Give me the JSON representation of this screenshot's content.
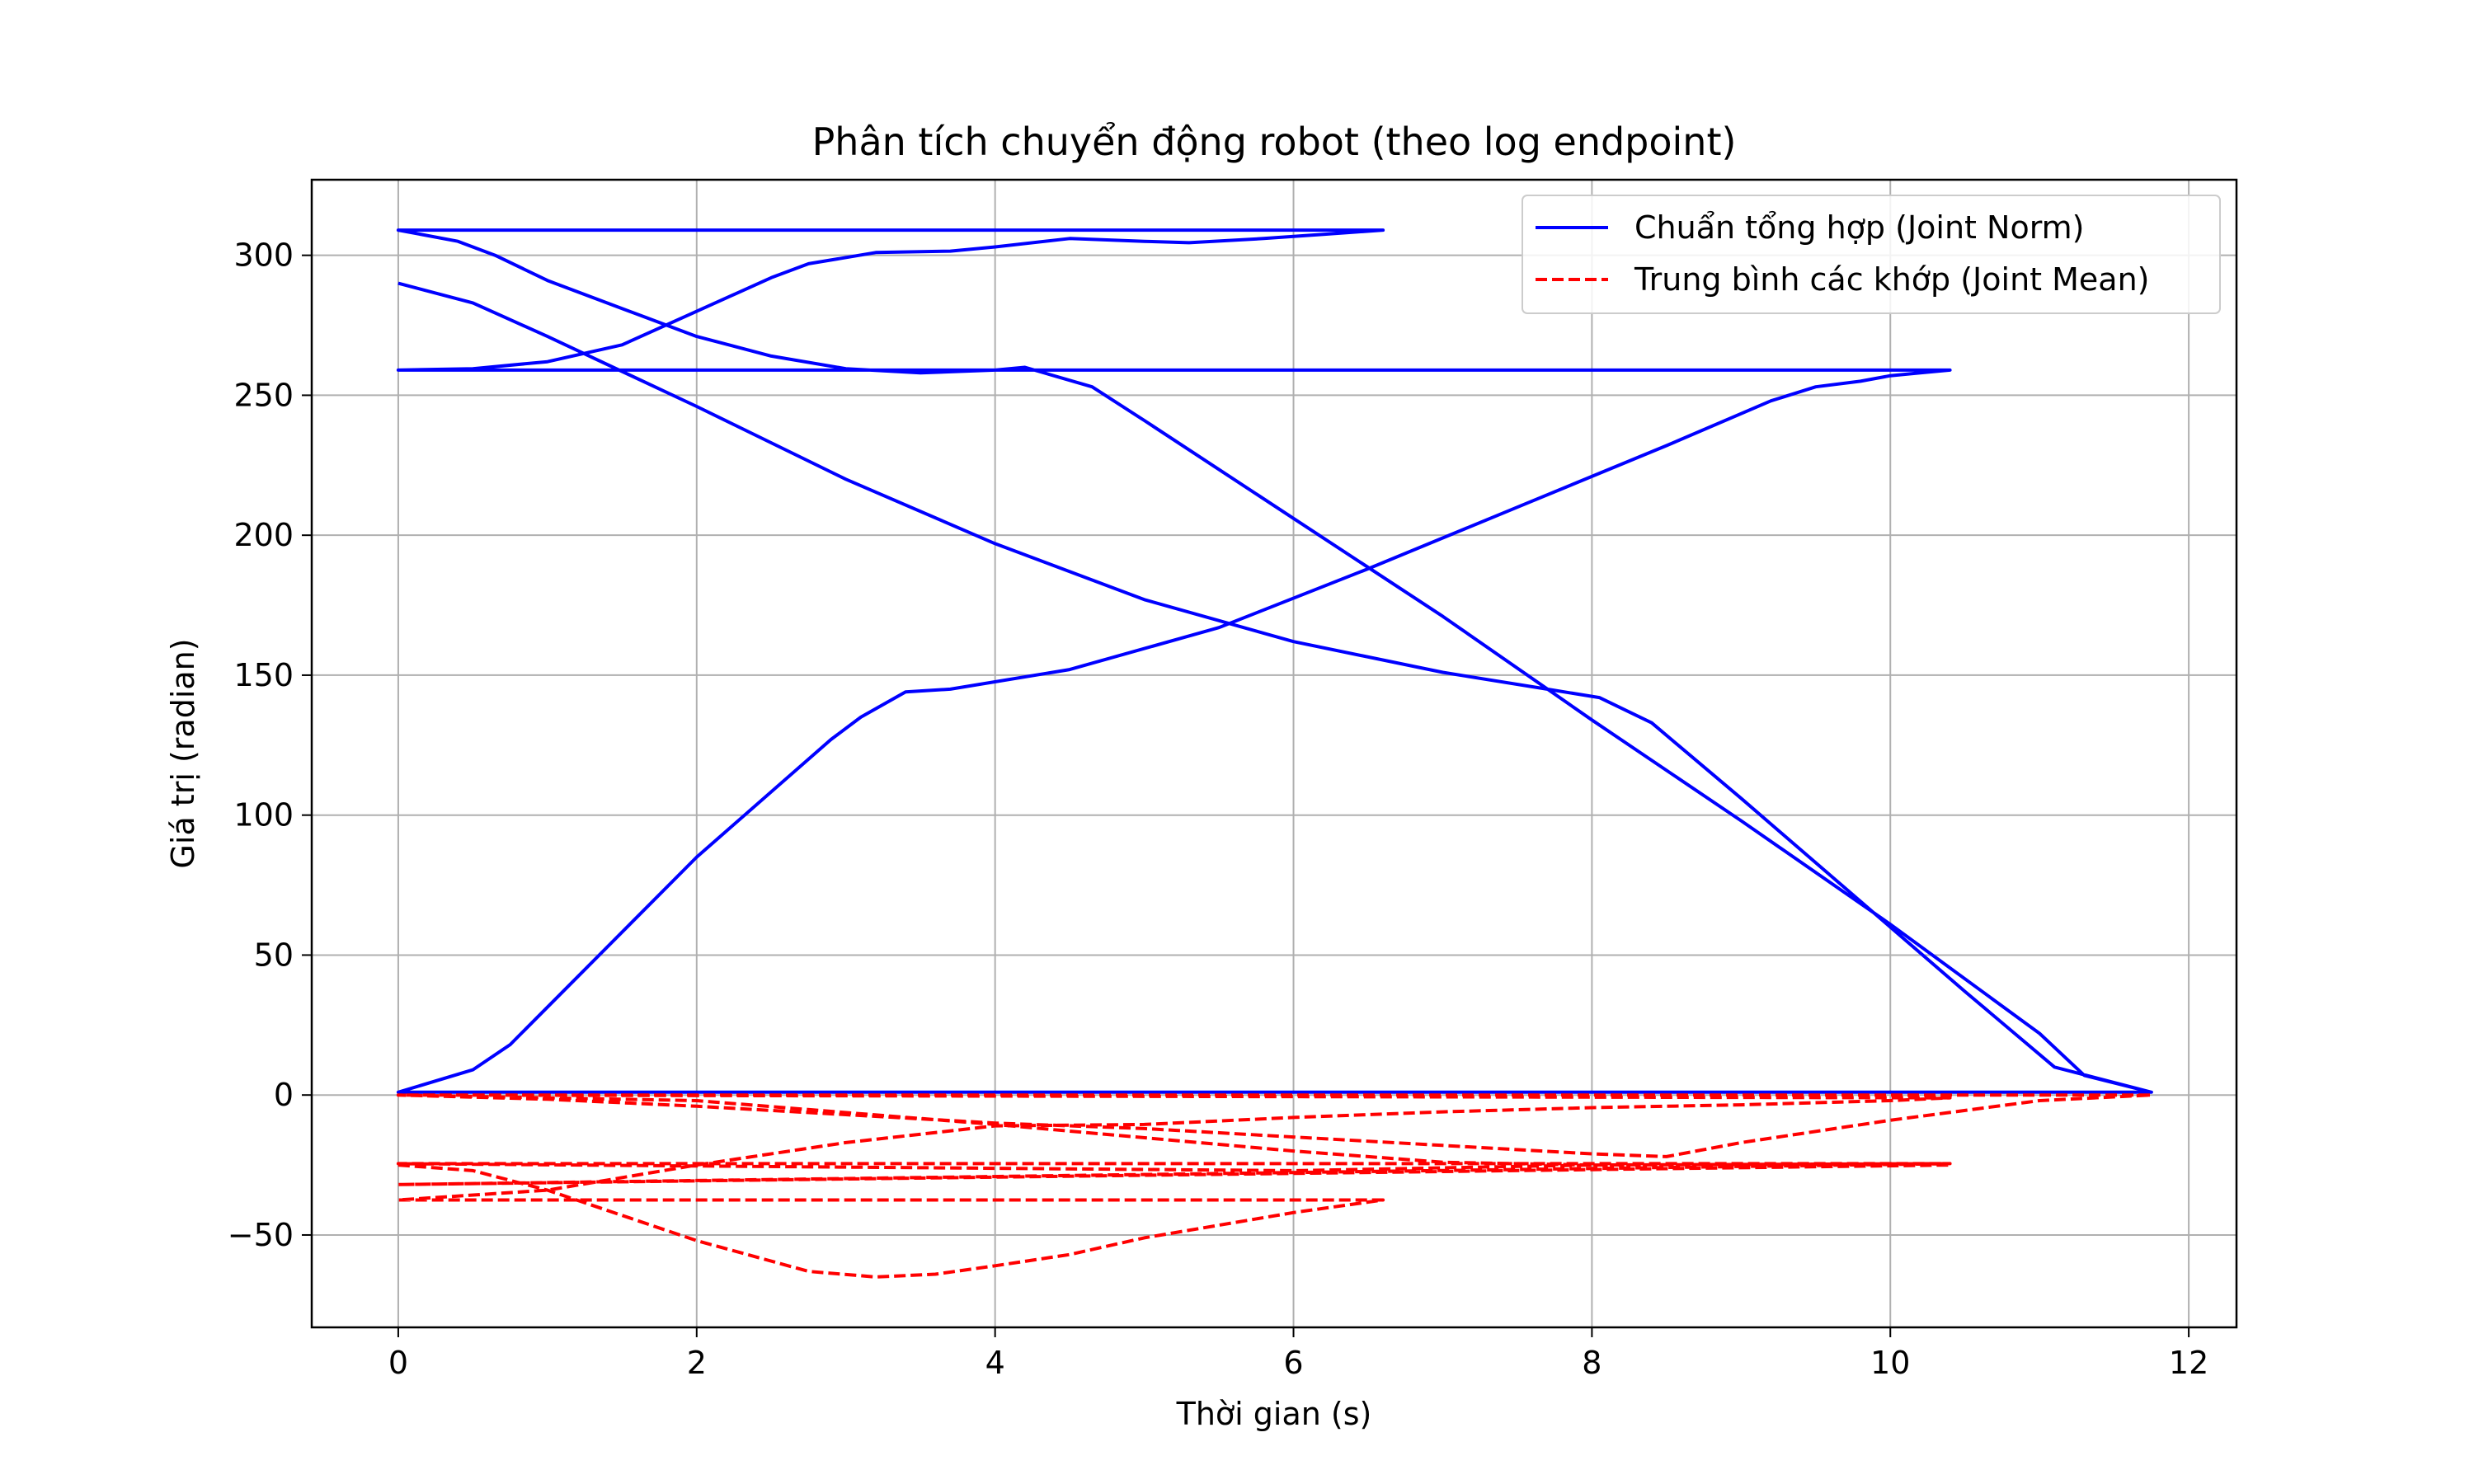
{
  "chart_data": {
    "type": "line",
    "title": "Phân tích chuyển động robot (theo log endpoint)",
    "xlabel": "Thời gian (s)",
    "ylabel": "Giá trị (radian)",
    "xlim": [
      -0.58,
      12.32
    ],
    "ylim": [
      -83,
      327
    ],
    "xticks": [
      0,
      2,
      4,
      6,
      8,
      10,
      12
    ],
    "yticks": [
      -50,
      0,
      50,
      100,
      150,
      200,
      250,
      300
    ],
    "grid": true,
    "legend_position": "top-right",
    "series": [
      {
        "name": "Chuẩn tổng hợp (Joint Norm)",
        "color": "#0000ff",
        "style": "solid",
        "points": [
          [
            0,
            290
          ],
          [
            0.5,
            283
          ],
          [
            1,
            271
          ],
          [
            2,
            246
          ],
          [
            3,
            220
          ],
          [
            4,
            197
          ],
          [
            5,
            177
          ],
          [
            6,
            162
          ],
          [
            7,
            151
          ],
          [
            7.7,
            145
          ],
          [
            8.05,
            142
          ],
          [
            8.4,
            133
          ],
          [
            9,
            106
          ],
          [
            10,
            60
          ],
          [
            10.5,
            37
          ],
          [
            11.1,
            10
          ],
          [
            11.75,
            1
          ],
          [
            0,
            1
          ],
          [
            0.5,
            9
          ],
          [
            0.75,
            18
          ],
          [
            2,
            85
          ],
          [
            2.9,
            127
          ],
          [
            3.1,
            135
          ],
          [
            3.4,
            144
          ],
          [
            3.7,
            145
          ],
          [
            4.5,
            152
          ],
          [
            5.5,
            167
          ],
          [
            6.5,
            188
          ],
          [
            7.5,
            210
          ],
          [
            8.5,
            232
          ],
          [
            9.2,
            248
          ],
          [
            9.5,
            253
          ],
          [
            9.8,
            255
          ],
          [
            10,
            257
          ],
          [
            10.2,
            258
          ],
          [
            10.4,
            259
          ],
          [
            0,
            259
          ],
          [
            0.5,
            259.5
          ],
          [
            1,
            262
          ],
          [
            1.5,
            268
          ],
          [
            2,
            280
          ],
          [
            2.5,
            292
          ],
          [
            2.75,
            297
          ],
          [
            3.2,
            301
          ],
          [
            3.7,
            301.5
          ],
          [
            4,
            303
          ],
          [
            4.5,
            306
          ],
          [
            5,
            305
          ],
          [
            5.3,
            304.5
          ],
          [
            5.8,
            306
          ],
          [
            6.2,
            307.5
          ],
          [
            6.6,
            309
          ],
          [
            0,
            309
          ],
          [
            0.4,
            305
          ],
          [
            0.65,
            300
          ],
          [
            1,
            291
          ],
          [
            1.5,
            281
          ],
          [
            2,
            271
          ],
          [
            2.5,
            264
          ],
          [
            3,
            259.5
          ],
          [
            3.5,
            258
          ],
          [
            4,
            259
          ],
          [
            4.2,
            260
          ],
          [
            4.65,
            253
          ],
          [
            5,
            241
          ],
          [
            6,
            206
          ],
          [
            7,
            171
          ],
          [
            8,
            134
          ],
          [
            9,
            98
          ],
          [
            10,
            61
          ],
          [
            11,
            22
          ],
          [
            11.3,
            7
          ],
          [
            11.75,
            1
          ]
        ]
      },
      {
        "name": "Trung bình các khớp (Joint Mean)",
        "color": "#ff0000",
        "style": "dashed",
        "points": [
          [
            0,
            -25
          ],
          [
            0.5,
            -27
          ],
          [
            1,
            -34
          ],
          [
            2,
            -52
          ],
          [
            2.75,
            -63
          ],
          [
            3.2,
            -65
          ],
          [
            3.6,
            -64
          ],
          [
            4,
            -61
          ],
          [
            4.5,
            -57
          ],
          [
            5,
            -51
          ],
          [
            6,
            -42
          ],
          [
            6.6,
            -37.5
          ],
          [
            0,
            -37.5
          ],
          [
            1,
            -34
          ],
          [
            2,
            -25
          ],
          [
            3,
            -17
          ],
          [
            4,
            -11
          ],
          [
            5,
            -10.5
          ],
          [
            6,
            -8
          ],
          [
            7,
            -6
          ],
          [
            8,
            -4.5
          ],
          [
            9,
            -3.5
          ],
          [
            10,
            -2
          ],
          [
            10.4,
            -1
          ],
          [
            0,
            0
          ],
          [
            1,
            -1.5
          ],
          [
            2,
            -4
          ],
          [
            3,
            -7
          ],
          [
            4,
            -10
          ],
          [
            5,
            -12
          ],
          [
            6,
            -15
          ],
          [
            7,
            -18
          ],
          [
            8,
            -21
          ],
          [
            8.5,
            -22
          ],
          [
            9,
            -17
          ],
          [
            10,
            -9
          ],
          [
            11,
            -2
          ],
          [
            11.75,
            0
          ],
          [
            0,
            0
          ],
          [
            2,
            -2
          ],
          [
            4,
            -10.5
          ],
          [
            6,
            -20
          ],
          [
            7,
            -24
          ],
          [
            8,
            -25
          ],
          [
            10.4,
            -24.5
          ],
          [
            0,
            -24.5
          ],
          [
            6,
            -27
          ],
          [
            8,
            -25
          ],
          [
            10.4,
            -24.5
          ],
          [
            0,
            -32
          ],
          [
            6,
            -28
          ],
          [
            10.4,
            -25
          ]
        ]
      }
    ]
  }
}
